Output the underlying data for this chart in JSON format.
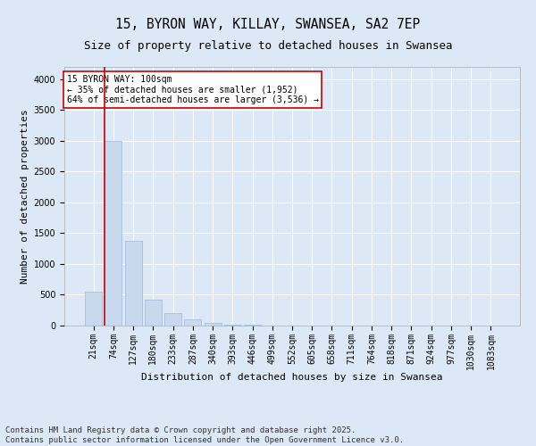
{
  "title1": "15, BYRON WAY, KILLAY, SWANSEA, SA2 7EP",
  "title2": "Size of property relative to detached houses in Swansea",
  "xlabel": "Distribution of detached houses by size in Swansea",
  "ylabel": "Number of detached properties",
  "categories": [
    "21sqm",
    "74sqm",
    "127sqm",
    "180sqm",
    "233sqm",
    "287sqm",
    "340sqm",
    "393sqm",
    "446sqm",
    "499sqm",
    "552sqm",
    "605sqm",
    "658sqm",
    "711sqm",
    "764sqm",
    "818sqm",
    "871sqm",
    "924sqm",
    "977sqm",
    "1030sqm",
    "1083sqm"
  ],
  "values": [
    550,
    3000,
    1370,
    420,
    210,
    100,
    50,
    20,
    10,
    0,
    0,
    0,
    0,
    0,
    0,
    0,
    0,
    0,
    0,
    0,
    0
  ],
  "bar_color": "#c8d9ee",
  "bar_edge_color": "#9db8d8",
  "vline_color": "#cc0000",
  "annotation_text": "15 BYRON WAY: 100sqm\n← 35% of detached houses are smaller (1,952)\n64% of semi-detached houses are larger (3,536) →",
  "annotation_box_color": "#ffffff",
  "annotation_box_edge": "#cc0000",
  "ylim": [
    0,
    4200
  ],
  "yticks": [
    0,
    500,
    1000,
    1500,
    2000,
    2500,
    3000,
    3500,
    4000
  ],
  "background_color": "#dce8f5",
  "plot_bg_color": "#dce8f5",
  "grid_color": "#ffffff",
  "footer_line1": "Contains HM Land Registry data © Crown copyright and database right 2025.",
  "footer_line2": "Contains public sector information licensed under the Open Government Licence v3.0.",
  "title_fontsize": 10.5,
  "subtitle_fontsize": 9,
  "label_fontsize": 8,
  "tick_fontsize": 7,
  "annotation_fontsize": 7,
  "footer_fontsize": 6.5
}
